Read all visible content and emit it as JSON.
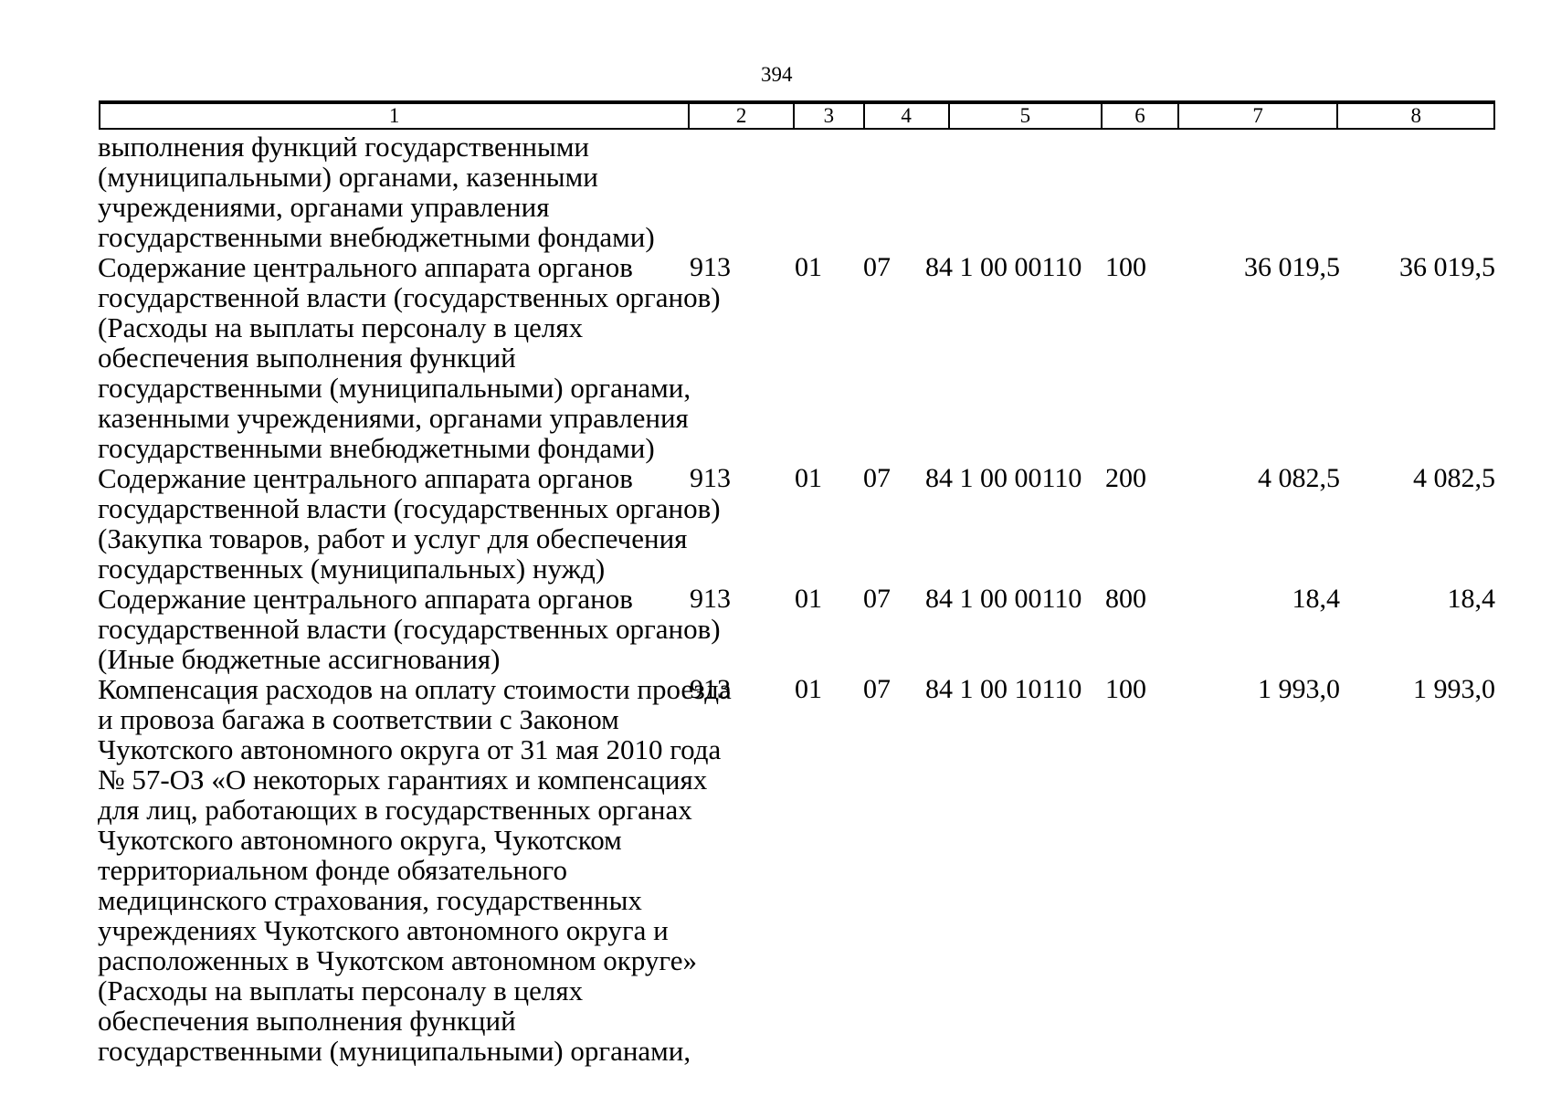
{
  "page_number": "394",
  "table": {
    "header_columns": [
      "1",
      "2",
      "3",
      "4",
      "5",
      "6",
      "7",
      "8"
    ],
    "rows": [
      {
        "name_lines": [
          "выполнения функций государственными",
          "(муниципальными) органами, казенными",
          "учреждениями, органами управления",
          "государственными внебюджетными фондами)"
        ]
      },
      {
        "name_lines": [
          "Содержание центрального аппарата органов",
          "государственной власти (государственных органов)",
          "(Расходы на выплаты персоналу в целях",
          "обеспечения выполнения функций",
          "государственными (муниципальными) органами,",
          "казенными учреждениями, органами управления",
          "государственными внебюджетными фондами)"
        ],
        "col2": "913",
        "col3": "01",
        "col4": "07",
        "col5": "84 1 00 00110",
        "col6": "100",
        "col7": "36 019,5",
        "col8": "36 019,5"
      },
      {
        "name_lines": [
          "Содержание центрального аппарата органов",
          "государственной власти (государственных органов)",
          "(Закупка товаров, работ и услуг для обеспечения",
          "государственных (муниципальных) нужд)"
        ],
        "col2": "913",
        "col3": "01",
        "col4": "07",
        "col5": "84 1 00 00110",
        "col6": "200",
        "col7": "4 082,5",
        "col8": "4 082,5"
      },
      {
        "name_lines": [
          "Содержание центрального аппарата органов",
          "государственной власти (государственных органов)",
          "(Иные бюджетные ассигнования)"
        ],
        "col2": "913",
        "col3": "01",
        "col4": "07",
        "col5": "84 1 00 00110",
        "col6": "800",
        "col7": "18,4",
        "col8": "18,4"
      },
      {
        "name_lines": [
          "Компенсация расходов на оплату стоимости проезда",
          "и провоза багажа в соответствии с Законом",
          "Чукотского автономного округа от 31 мая 2010 года",
          "№ 57-ОЗ «О некоторых гарантиях и компенсациях",
          "для лиц, работающих в государственных органах",
          "Чукотского автономного округа, Чукотском",
          "территориальном фонде обязательного",
          "медицинского страхования, государственных",
          "учреждениях Чукотского автономного округа и",
          "расположенных в Чукотском автономном округе»",
          "(Расходы на выплаты персоналу в целях",
          "обеспечения выполнения функций",
          "государственными (муниципальными) органами,"
        ],
        "col2": "913",
        "col3": "01",
        "col4": "07",
        "col5": "84 1 00 10110",
        "col6": "100",
        "col7": "1 993,0",
        "col8": "1 993,0"
      }
    ]
  }
}
